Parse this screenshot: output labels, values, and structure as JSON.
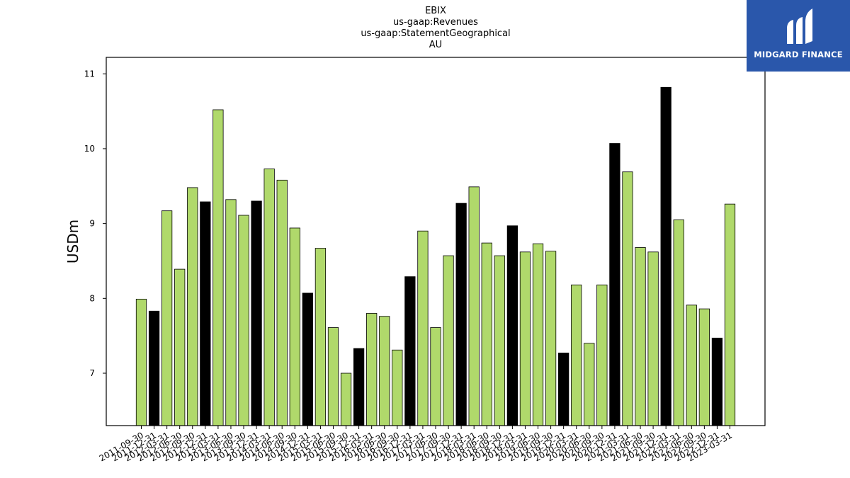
{
  "chart_data": {
    "type": "bar",
    "title_lines": [
      "EBIX",
      "us-gaap:Revenues",
      "us-gaap:StatementGeographical",
      "AU"
    ],
    "xlabel": "",
    "ylabel": "USDm",
    "ylim": [
      6.3,
      11.22
    ],
    "yticks": [
      7,
      8,
      9,
      10,
      11
    ],
    "grid": false,
    "colors": {
      "default": "#b0d96b",
      "highlight": "#000000",
      "edge": "#000000"
    },
    "categories": [
      "2011-09-30",
      "2011-12-31",
      "2012-03-31",
      "2012-06-30",
      "2012-09-30",
      "2012-12-31",
      "2013-03-31",
      "2013-06-30",
      "2013-09-30",
      "2013-12-31",
      "2014-03-31",
      "2014-06-30",
      "2014-09-30",
      "2014-12-31",
      "2015-03-31",
      "2015-06-30",
      "2015-09-30",
      "2015-12-31",
      "2016-03-31",
      "2016-06-30",
      "2016-09-30",
      "2016-12-31",
      "2017-03-31",
      "2017-06-30",
      "2017-09-30",
      "2017-12-31",
      "2018-03-31",
      "2018-06-30",
      "2018-09-30",
      "2018-12-31",
      "2019-03-31",
      "2019-06-30",
      "2019-09-30",
      "2019-12-31",
      "2020-03-31",
      "2020-06-30",
      "2020-09-30",
      "2020-12-31",
      "2021-03-31",
      "2021-06-30",
      "2021-09-30",
      "2021-12-31",
      "2022-03-31",
      "2022-06-30",
      "2022-09-30",
      "2022-12-31",
      "2023-03-31"
    ],
    "values": [
      7.99,
      7.83,
      9.17,
      8.39,
      9.48,
      9.29,
      10.52,
      9.32,
      9.11,
      9.3,
      9.73,
      9.58,
      8.94,
      8.07,
      8.67,
      7.61,
      7.0,
      7.33,
      7.8,
      7.76,
      7.31,
      8.29,
      8.9,
      7.61,
      8.57,
      9.27,
      9.49,
      8.74,
      8.57,
      8.97,
      8.62,
      8.73,
      8.63,
      7.27,
      8.18,
      7.4,
      8.18,
      10.07,
      9.69,
      8.68,
      8.62,
      10.82,
      9.05,
      7.91,
      7.86,
      7.47,
      9.26
    ],
    "highlighted": [
      false,
      true,
      false,
      false,
      false,
      true,
      false,
      false,
      false,
      true,
      false,
      false,
      false,
      true,
      false,
      false,
      false,
      true,
      false,
      false,
      false,
      true,
      false,
      false,
      false,
      true,
      false,
      false,
      false,
      true,
      false,
      false,
      false,
      true,
      false,
      false,
      false,
      true,
      false,
      false,
      false,
      true,
      false,
      false,
      false,
      true,
      false
    ]
  },
  "logo": {
    "text": "MIDGARD FINANCE",
    "color": "#2a57ab"
  }
}
